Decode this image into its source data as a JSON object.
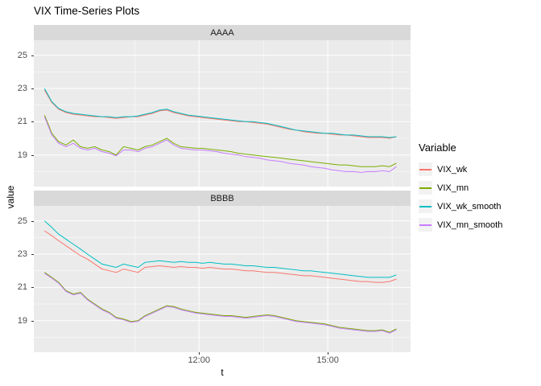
{
  "title": "VIX Time-Series Plots",
  "axes": {
    "x_label": "t",
    "y_label": "value"
  },
  "legend": {
    "title": "Variable"
  },
  "panel_style": {
    "bg": "#EBEBEB",
    "strip_bg": "#D9D9D9",
    "grid": "#FFFFFF"
  },
  "chart_data": {
    "type": "line",
    "title": "VIX Time-Series Plots",
    "xlabel": "t",
    "ylabel": "value",
    "facets": [
      "AAAA",
      "BBBB"
    ],
    "legend_position": "right",
    "grid": "on",
    "x_domain": [
      8.15,
      16.93
    ],
    "y_domain": [
      17.1,
      25.9
    ],
    "x_ticks": [
      {
        "value": 12,
        "label": "12:00"
      },
      {
        "value": 15,
        "label": "15:00"
      }
    ],
    "x_minor": [
      10.5,
      13.5,
      16.5
    ],
    "y_ticks": [
      19,
      21,
      23,
      25
    ],
    "y_minor": [
      18,
      20,
      22,
      24
    ],
    "x": [
      8.4,
      8.57,
      8.73,
      8.9,
      9.07,
      9.24,
      9.4,
      9.57,
      9.74,
      9.91,
      10.07,
      10.24,
      10.41,
      10.58,
      10.74,
      10.91,
      11.08,
      11.25,
      11.41,
      11.58,
      11.75,
      11.92,
      12.08,
      12.25,
      12.42,
      12.59,
      12.75,
      12.92,
      13.09,
      13.26,
      13.42,
      13.59,
      13.76,
      13.93,
      14.09,
      14.26,
      14.43,
      14.6,
      14.76,
      14.93,
      15.1,
      15.27,
      15.43,
      15.6,
      15.77,
      15.94,
      16.1,
      16.27,
      16.44,
      16.6
    ],
    "series": [
      {
        "name": "VIX_wk",
        "color": "#F8766D",
        "values": {
          "AAAA": [
            22.9,
            22.15,
            21.75,
            21.55,
            21.45,
            21.4,
            21.35,
            21.3,
            21.3,
            21.25,
            21.2,
            21.25,
            21.3,
            21.3,
            21.4,
            21.5,
            21.65,
            21.7,
            21.55,
            21.45,
            21.35,
            21.3,
            21.25,
            21.2,
            21.15,
            21.1,
            21.05,
            21.0,
            21.0,
            20.95,
            20.9,
            20.85,
            20.75,
            20.65,
            20.55,
            20.5,
            20.4,
            20.35,
            20.3,
            20.3,
            20.25,
            20.2,
            20.2,
            20.15,
            20.1,
            20.05,
            20.05,
            20.05,
            20.0,
            20.1
          ],
          "BBBB": [
            24.4,
            24.1,
            23.8,
            23.5,
            23.2,
            22.9,
            22.7,
            22.4,
            22.1,
            22.0,
            21.9,
            22.1,
            22.0,
            21.9,
            22.2,
            22.25,
            22.3,
            22.25,
            22.2,
            22.25,
            22.2,
            22.2,
            22.15,
            22.2,
            22.15,
            22.1,
            22.1,
            22.05,
            22.0,
            22.0,
            21.95,
            21.9,
            21.9,
            21.85,
            21.8,
            21.75,
            21.7,
            21.7,
            21.65,
            21.6,
            21.55,
            21.5,
            21.45,
            21.4,
            21.35,
            21.35,
            21.3,
            21.3,
            21.35,
            21.5
          ]
        }
      },
      {
        "name": "VIX_mn",
        "color": "#7CAE00",
        "values": {
          "AAAA": [
            21.4,
            20.3,
            19.8,
            19.6,
            19.9,
            19.5,
            19.4,
            19.5,
            19.3,
            19.2,
            19.0,
            19.5,
            19.4,
            19.3,
            19.5,
            19.6,
            19.8,
            20.0,
            19.7,
            19.5,
            19.45,
            19.4,
            19.4,
            19.35,
            19.3,
            19.25,
            19.2,
            19.1,
            19.05,
            19.0,
            18.95,
            18.9,
            18.85,
            18.8,
            18.75,
            18.7,
            18.65,
            18.6,
            18.55,
            18.5,
            18.45,
            18.4,
            18.4,
            18.35,
            18.3,
            18.3,
            18.3,
            18.35,
            18.3,
            18.5
          ],
          "BBBB": [
            21.9,
            21.6,
            21.3,
            20.8,
            20.6,
            20.7,
            20.3,
            20.0,
            19.7,
            19.5,
            19.2,
            19.1,
            18.95,
            19.0,
            19.3,
            19.5,
            19.7,
            19.9,
            19.85,
            19.7,
            19.6,
            19.5,
            19.45,
            19.4,
            19.35,
            19.3,
            19.3,
            19.25,
            19.2,
            19.25,
            19.3,
            19.35,
            19.3,
            19.2,
            19.1,
            19.0,
            18.95,
            18.9,
            18.85,
            18.8,
            18.7,
            18.6,
            18.55,
            18.5,
            18.45,
            18.4,
            18.4,
            18.45,
            18.3,
            18.5
          ]
        }
      },
      {
        "name": "VIX_wk_smooth",
        "color": "#00BFC4",
        "values": {
          "AAAA": [
            23.0,
            22.2,
            21.8,
            21.6,
            21.5,
            21.45,
            21.4,
            21.35,
            21.3,
            21.3,
            21.25,
            21.3,
            21.3,
            21.35,
            21.45,
            21.55,
            21.7,
            21.75,
            21.6,
            21.5,
            21.4,
            21.35,
            21.3,
            21.25,
            21.2,
            21.15,
            21.1,
            21.05,
            21.0,
            21.0,
            20.95,
            20.9,
            20.8,
            20.7,
            20.6,
            20.5,
            20.45,
            20.4,
            20.35,
            20.3,
            20.3,
            20.25,
            20.2,
            20.2,
            20.15,
            20.1,
            20.1,
            20.1,
            20.05,
            20.1
          ],
          "BBBB": [
            25.0,
            24.6,
            24.2,
            23.9,
            23.6,
            23.3,
            23.0,
            22.7,
            22.4,
            22.3,
            22.2,
            22.4,
            22.3,
            22.2,
            22.5,
            22.55,
            22.6,
            22.55,
            22.5,
            22.55,
            22.5,
            22.5,
            22.45,
            22.5,
            22.45,
            22.4,
            22.4,
            22.35,
            22.3,
            22.3,
            22.25,
            22.2,
            22.2,
            22.15,
            22.1,
            22.05,
            22.0,
            22.0,
            21.95,
            21.9,
            21.85,
            21.8,
            21.75,
            21.7,
            21.65,
            21.6,
            21.6,
            21.6,
            21.6,
            21.75
          ]
        }
      },
      {
        "name": "VIX_mn_smooth",
        "color": "#C77CFF",
        "values": {
          "AAAA": [
            21.3,
            20.2,
            19.7,
            19.5,
            19.7,
            19.4,
            19.3,
            19.4,
            19.2,
            19.1,
            18.95,
            19.3,
            19.3,
            19.2,
            19.4,
            19.5,
            19.7,
            19.9,
            19.6,
            19.4,
            19.35,
            19.3,
            19.3,
            19.25,
            19.2,
            19.1,
            19.05,
            19.0,
            18.9,
            18.85,
            18.8,
            18.7,
            18.65,
            18.6,
            18.5,
            18.45,
            18.4,
            18.3,
            18.25,
            18.2,
            18.1,
            18.05,
            18.0,
            18.0,
            17.95,
            18.0,
            18.0,
            18.05,
            18.0,
            18.3
          ],
          "BBBB": [
            21.85,
            21.55,
            21.25,
            20.75,
            20.55,
            20.65,
            20.25,
            19.95,
            19.65,
            19.45,
            19.15,
            19.05,
            18.9,
            18.95,
            19.25,
            19.45,
            19.65,
            19.85,
            19.8,
            19.65,
            19.55,
            19.45,
            19.4,
            19.35,
            19.3,
            19.25,
            19.25,
            19.2,
            19.15,
            19.2,
            19.25,
            19.3,
            19.25,
            19.15,
            19.05,
            18.95,
            18.9,
            18.85,
            18.8,
            18.75,
            18.65,
            18.55,
            18.5,
            18.45,
            18.4,
            18.35,
            18.35,
            18.4,
            18.25,
            18.45
          ]
        }
      }
    ]
  }
}
